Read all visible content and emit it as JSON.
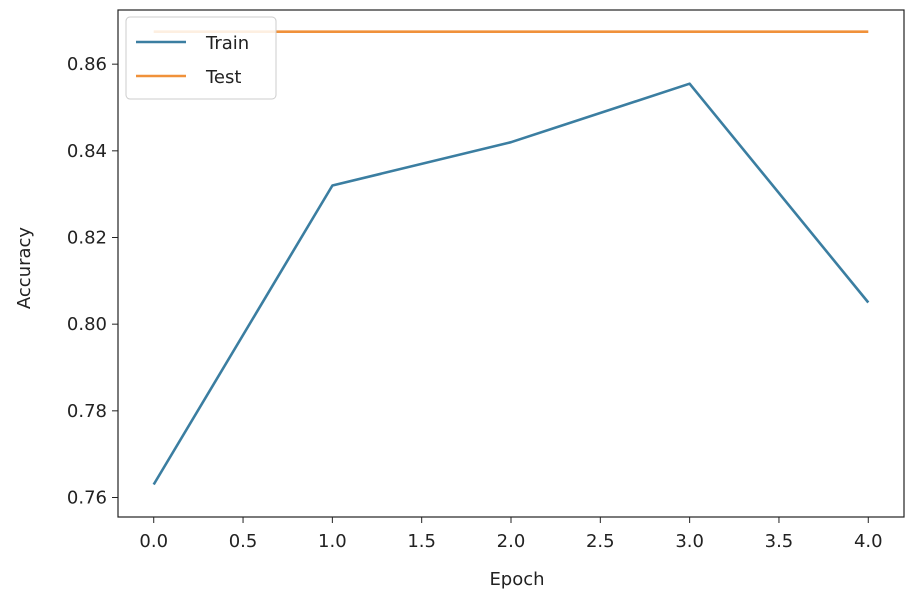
{
  "chart_data": {
    "type": "line",
    "xlabel": "Epoch",
    "ylabel": "Accuracy",
    "xlim": [
      -0.2,
      4.2
    ],
    "ylim": [
      0.7555,
      0.8725
    ],
    "xticks": [
      0.0,
      0.5,
      1.0,
      1.5,
      2.0,
      2.5,
      3.0,
      3.5,
      4.0
    ],
    "xtick_labels": [
      "0.0",
      "0.5",
      "1.0",
      "1.5",
      "2.0",
      "2.5",
      "3.0",
      "3.5",
      "4.0"
    ],
    "yticks": [
      0.76,
      0.78,
      0.8,
      0.82,
      0.84,
      0.86
    ],
    "ytick_labels": [
      "0.76",
      "0.78",
      "0.80",
      "0.82",
      "0.84",
      "0.86"
    ],
    "grid": false,
    "legend": {
      "placement": "upper-left",
      "entries": [
        "Train",
        "Test"
      ]
    },
    "series": [
      {
        "name": "Train",
        "color": "#3b7ea1",
        "x": [
          0,
          1,
          2,
          3,
          4
        ],
        "y": [
          0.763,
          0.832,
          0.842,
          0.8555,
          0.805
        ]
      },
      {
        "name": "Test",
        "color": "#f0913a",
        "x": [
          0,
          1,
          2,
          3,
          4
        ],
        "y": [
          0.8675,
          0.8675,
          0.8675,
          0.8675,
          0.8675
        ]
      }
    ]
  }
}
